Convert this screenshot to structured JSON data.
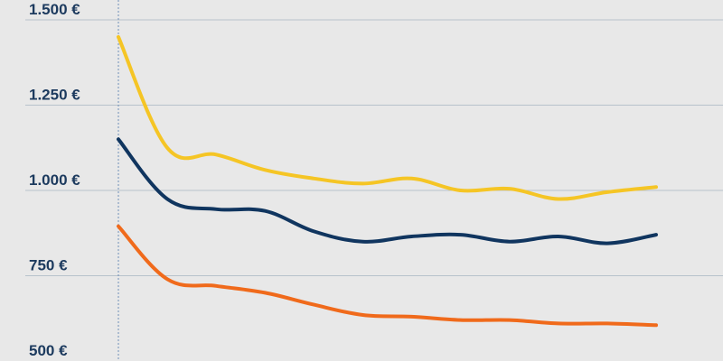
{
  "chart_data": {
    "type": "line",
    "ylim": [
      500,
      1500
    ],
    "yticks": [
      500,
      750,
      1000,
      1250,
      1500
    ],
    "ytick_labels": [
      "500 €",
      "750 €",
      "1.000 €",
      "1.250 €",
      "1.500 €"
    ],
    "grid": true,
    "x": [
      1,
      2,
      3,
      4,
      5,
      6,
      7,
      8,
      9,
      10,
      11,
      12
    ],
    "series": [
      {
        "color": "#f5c525",
        "values": [
          1450,
          1125,
          1105,
          1060,
          1035,
          1020,
          1035,
          1000,
          1005,
          975,
          995,
          1010
        ]
      },
      {
        "color": "#10355f",
        "values": [
          1150,
          975,
          945,
          940,
          880,
          850,
          865,
          870,
          850,
          865,
          845,
          870
        ]
      },
      {
        "color": "#f06a1b",
        "values": [
          895,
          740,
          720,
          700,
          665,
          635,
          630,
          620,
          620,
          610,
          610,
          605
        ]
      }
    ]
  }
}
